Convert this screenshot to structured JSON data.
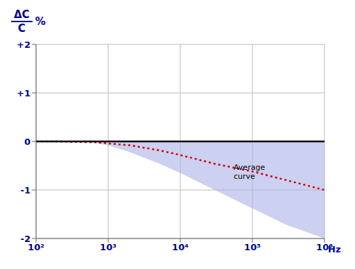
{
  "chart_data": {
    "type": "line",
    "log": "x",
    "grid": true,
    "xlabel": "Hz",
    "ylabel": {
      "numerator": "ΔC",
      "denominator": "C",
      "suffix": "%"
    },
    "xlim": [
      100,
      1000000
    ],
    "ylim": [
      -2,
      2
    ],
    "xticks": [
      {
        "value": 100,
        "label": "10²"
      },
      {
        "value": 1000,
        "label": "10³"
      },
      {
        "value": 10000,
        "label": "10⁴"
      },
      {
        "value": 100000,
        "label": "10⁵"
      },
      {
        "value": 1000000,
        "label": "10⁶"
      }
    ],
    "yticks": [
      -2,
      -1,
      0,
      {
        "value": 1,
        "label": "+1"
      },
      {
        "value": 2,
        "label": "+2"
      }
    ],
    "series": [
      {
        "type": "area",
        "color": "#aab0e8",
        "x": [
          500,
          1000,
          2000,
          5000,
          10000,
          30000,
          100000,
          300000,
          1000000
        ],
        "base": [
          0.0,
          0.0,
          0.0,
          0.0,
          0.0,
          0.0,
          0.0,
          0.0,
          0.0
        ],
        "values": [
          0.0,
          -0.08,
          -0.22,
          -0.45,
          -0.65,
          -1.0,
          -1.38,
          -1.72,
          -2.0
        ]
      },
      {
        "type": "line",
        "color": "#cc0000",
        "line_style": "dotted",
        "x": [
          100,
          200,
          400,
          700,
          1000,
          2000,
          5000,
          10000,
          30000,
          100000,
          300000,
          1000000
        ],
        "values": [
          0.0,
          0.0,
          -0.01,
          -0.02,
          -0.04,
          -0.08,
          -0.18,
          -0.28,
          -0.46,
          -0.62,
          -0.8,
          -1.0
        ]
      }
    ],
    "hlines": [
      {
        "value": 0,
        "color": "#000000"
      }
    ],
    "annotations": [
      {
        "text": "Average\ncurve",
        "x": 55000,
        "y": -0.45
      }
    ]
  }
}
